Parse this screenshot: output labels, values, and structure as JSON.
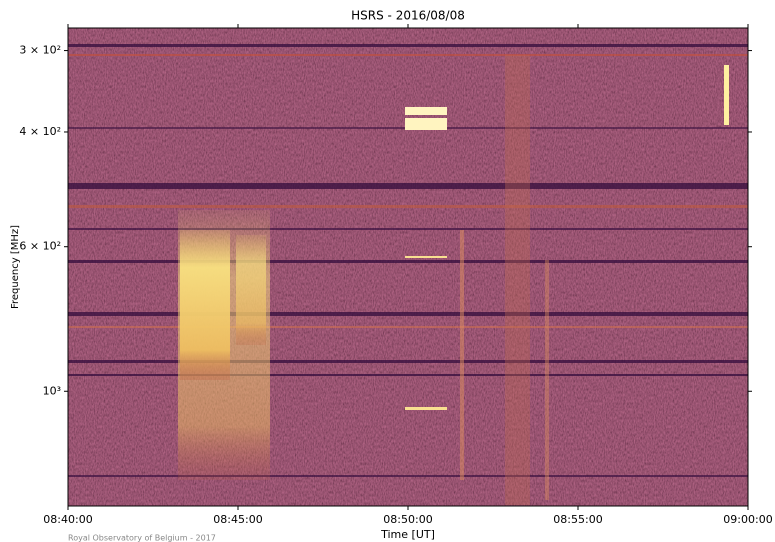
{
  "chart_data": {
    "type": "spectrogram",
    "title": "HSRS - 2016/08/08",
    "x_label": "Time [UT]",
    "y_label": "Frequency [MHz]",
    "xlim": [
      "08:40:00",
      "09:00:00"
    ],
    "xticks": [
      "08:40:00",
      "08:45:00",
      "08:50:00",
      "08:55:00",
      "09:00:00"
    ],
    "yscale": "log",
    "y_inverted": true,
    "ylim": [
      277,
      1500
    ],
    "yticks": [
      {
        "value": 300,
        "label": "3 × 10²"
      },
      {
        "value": 400,
        "label": "4 × 10²"
      },
      {
        "value": 600,
        "label": "6 × 10²"
      },
      {
        "value": 1000,
        "label": "10³"
      }
    ],
    "credit": "Royal Observatory of Belgium - 2017"
  }
}
